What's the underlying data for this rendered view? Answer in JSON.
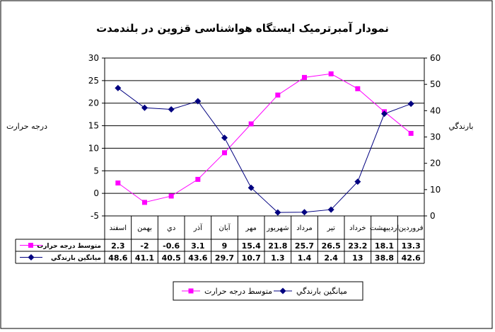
{
  "chart_data": {
    "type": "line",
    "title": "نمودار آمبرترمیک ایستگاه هواشناسی  قزوین در بلندمدت",
    "ylabel_left": "درجه حرارت",
    "ylabel_right": "بارندگي",
    "ylim_left": [
      -5,
      30
    ],
    "ylim_right": [
      0,
      60
    ],
    "yticks_left": [
      "-5",
      "0",
      "5",
      "10",
      "15",
      "20",
      "25",
      "30"
    ],
    "yticks_right": [
      "0",
      "10",
      "20",
      "30",
      "40",
      "50",
      "60"
    ],
    "grid": true,
    "legend_position": "bottom",
    "categories": [
      "فروردين",
      "ارديبهشت",
      "خرداد",
      "تير",
      "مرداد",
      "شهريور",
      "مهر",
      "آبان",
      "آذر",
      "دي",
      "بهمن",
      "اسفند"
    ],
    "series": [
      {
        "name": "متوسط درجه حرارت",
        "axis": "left",
        "color": "#ff00ff",
        "marker": "square",
        "values": [
          13.3,
          18.1,
          23.2,
          26.5,
          25.7,
          21.8,
          15.4,
          9,
          3.1,
          -0.6,
          -2,
          2.3
        ],
        "labels": [
          "13.3",
          "18.1",
          "23.2",
          "26.5",
          "25.7",
          "21.8",
          "15.4",
          "9",
          "3.1",
          "-0.6",
          "-2",
          "2.3"
        ]
      },
      {
        "name": "ميانگين بارندگي",
        "axis": "right",
        "color": "#000080",
        "marker": "diamond",
        "values": [
          42.6,
          38.8,
          13,
          2.4,
          1.4,
          1.3,
          10.7,
          29.7,
          43.6,
          40.5,
          41.1,
          48.6
        ],
        "labels": [
          "42.6",
          "38.8",
          "13",
          "2.4",
          "1.4",
          "1.3",
          "10.7",
          "29.7",
          "43.6",
          "40.5",
          "41.1",
          "48.6"
        ]
      }
    ]
  }
}
